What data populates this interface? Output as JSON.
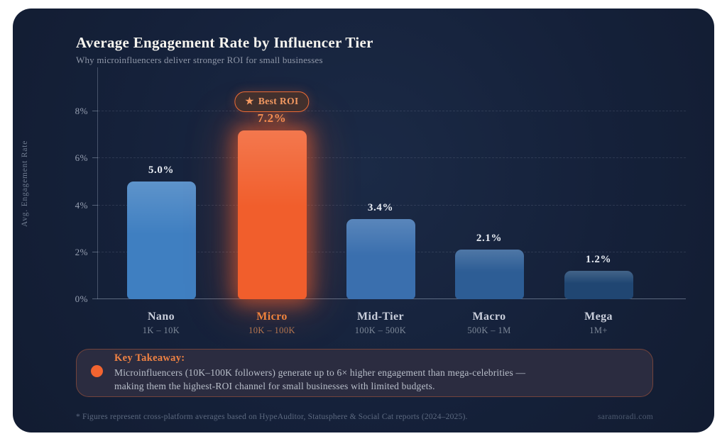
{
  "header": {
    "title": "Average Engagement Rate by Influencer Tier",
    "subtitle": "Why microinfluencers deliver stronger ROI for small businesses"
  },
  "chart_data": {
    "type": "bar",
    "title": "Average Engagement Rate by Influencer Tier",
    "subtitle": "Why microinfluencers deliver stronger ROI for small businesses",
    "xlabel": "",
    "ylabel": "Avg. Engagement Rate",
    "ylim": [
      0,
      8
    ],
    "ytick_values": [
      0,
      2,
      4,
      6,
      8
    ],
    "yticks": [
      "0%",
      "2%",
      "4%",
      "6%",
      "8%"
    ],
    "grid": "dashed horizontal",
    "bars": [
      {
        "category": "Nano",
        "range": "1K – 10K",
        "value": 5.0,
        "value_label": "5.0%",
        "color": "#3f7fc1",
        "highlight": false
      },
      {
        "category": "Micro",
        "range": "10K – 100K",
        "value": 7.2,
        "value_label": "7.2%",
        "color": "#f15e2c",
        "highlight": true
      },
      {
        "category": "Mid-Tier",
        "range": "100K – 500K",
        "value": 3.4,
        "value_label": "3.4%",
        "color": "#3a6fae",
        "highlight": false
      },
      {
        "category": "Macro",
        "range": "500K – 1M",
        "value": 2.1,
        "value_label": "2.1%",
        "color": "#2d5d95",
        "highlight": false
      },
      {
        "category": "Mega",
        "range": "1M+",
        "value": 1.2,
        "value_label": "1.2%",
        "color": "#204672",
        "highlight": false
      }
    ],
    "badge": {
      "star": "★",
      "label": "Best ROI",
      "attached_to": "Micro"
    }
  },
  "takeaway": {
    "title": "Key Takeaway:",
    "line1": "Microinfluencers (10K–100K followers) generate up to 6× higher engagement than mega-celebrities —",
    "line2": "making them the highest-ROI channel for small businesses with limited budgets."
  },
  "footer": {
    "footnote": "* Figures represent cross-platform averages based on HypeAuditor, Statusphere & Social Cat reports (2024–2025).",
    "credit": "saramoradi.com"
  },
  "colors": {
    "page_background": "#ffffff",
    "card_background": "#15213a",
    "accent_orange": "#f15e2c",
    "title_text": "#f7f5ef",
    "muted_text": "#8f97a8",
    "takeaway_background": "#2b2c40"
  }
}
